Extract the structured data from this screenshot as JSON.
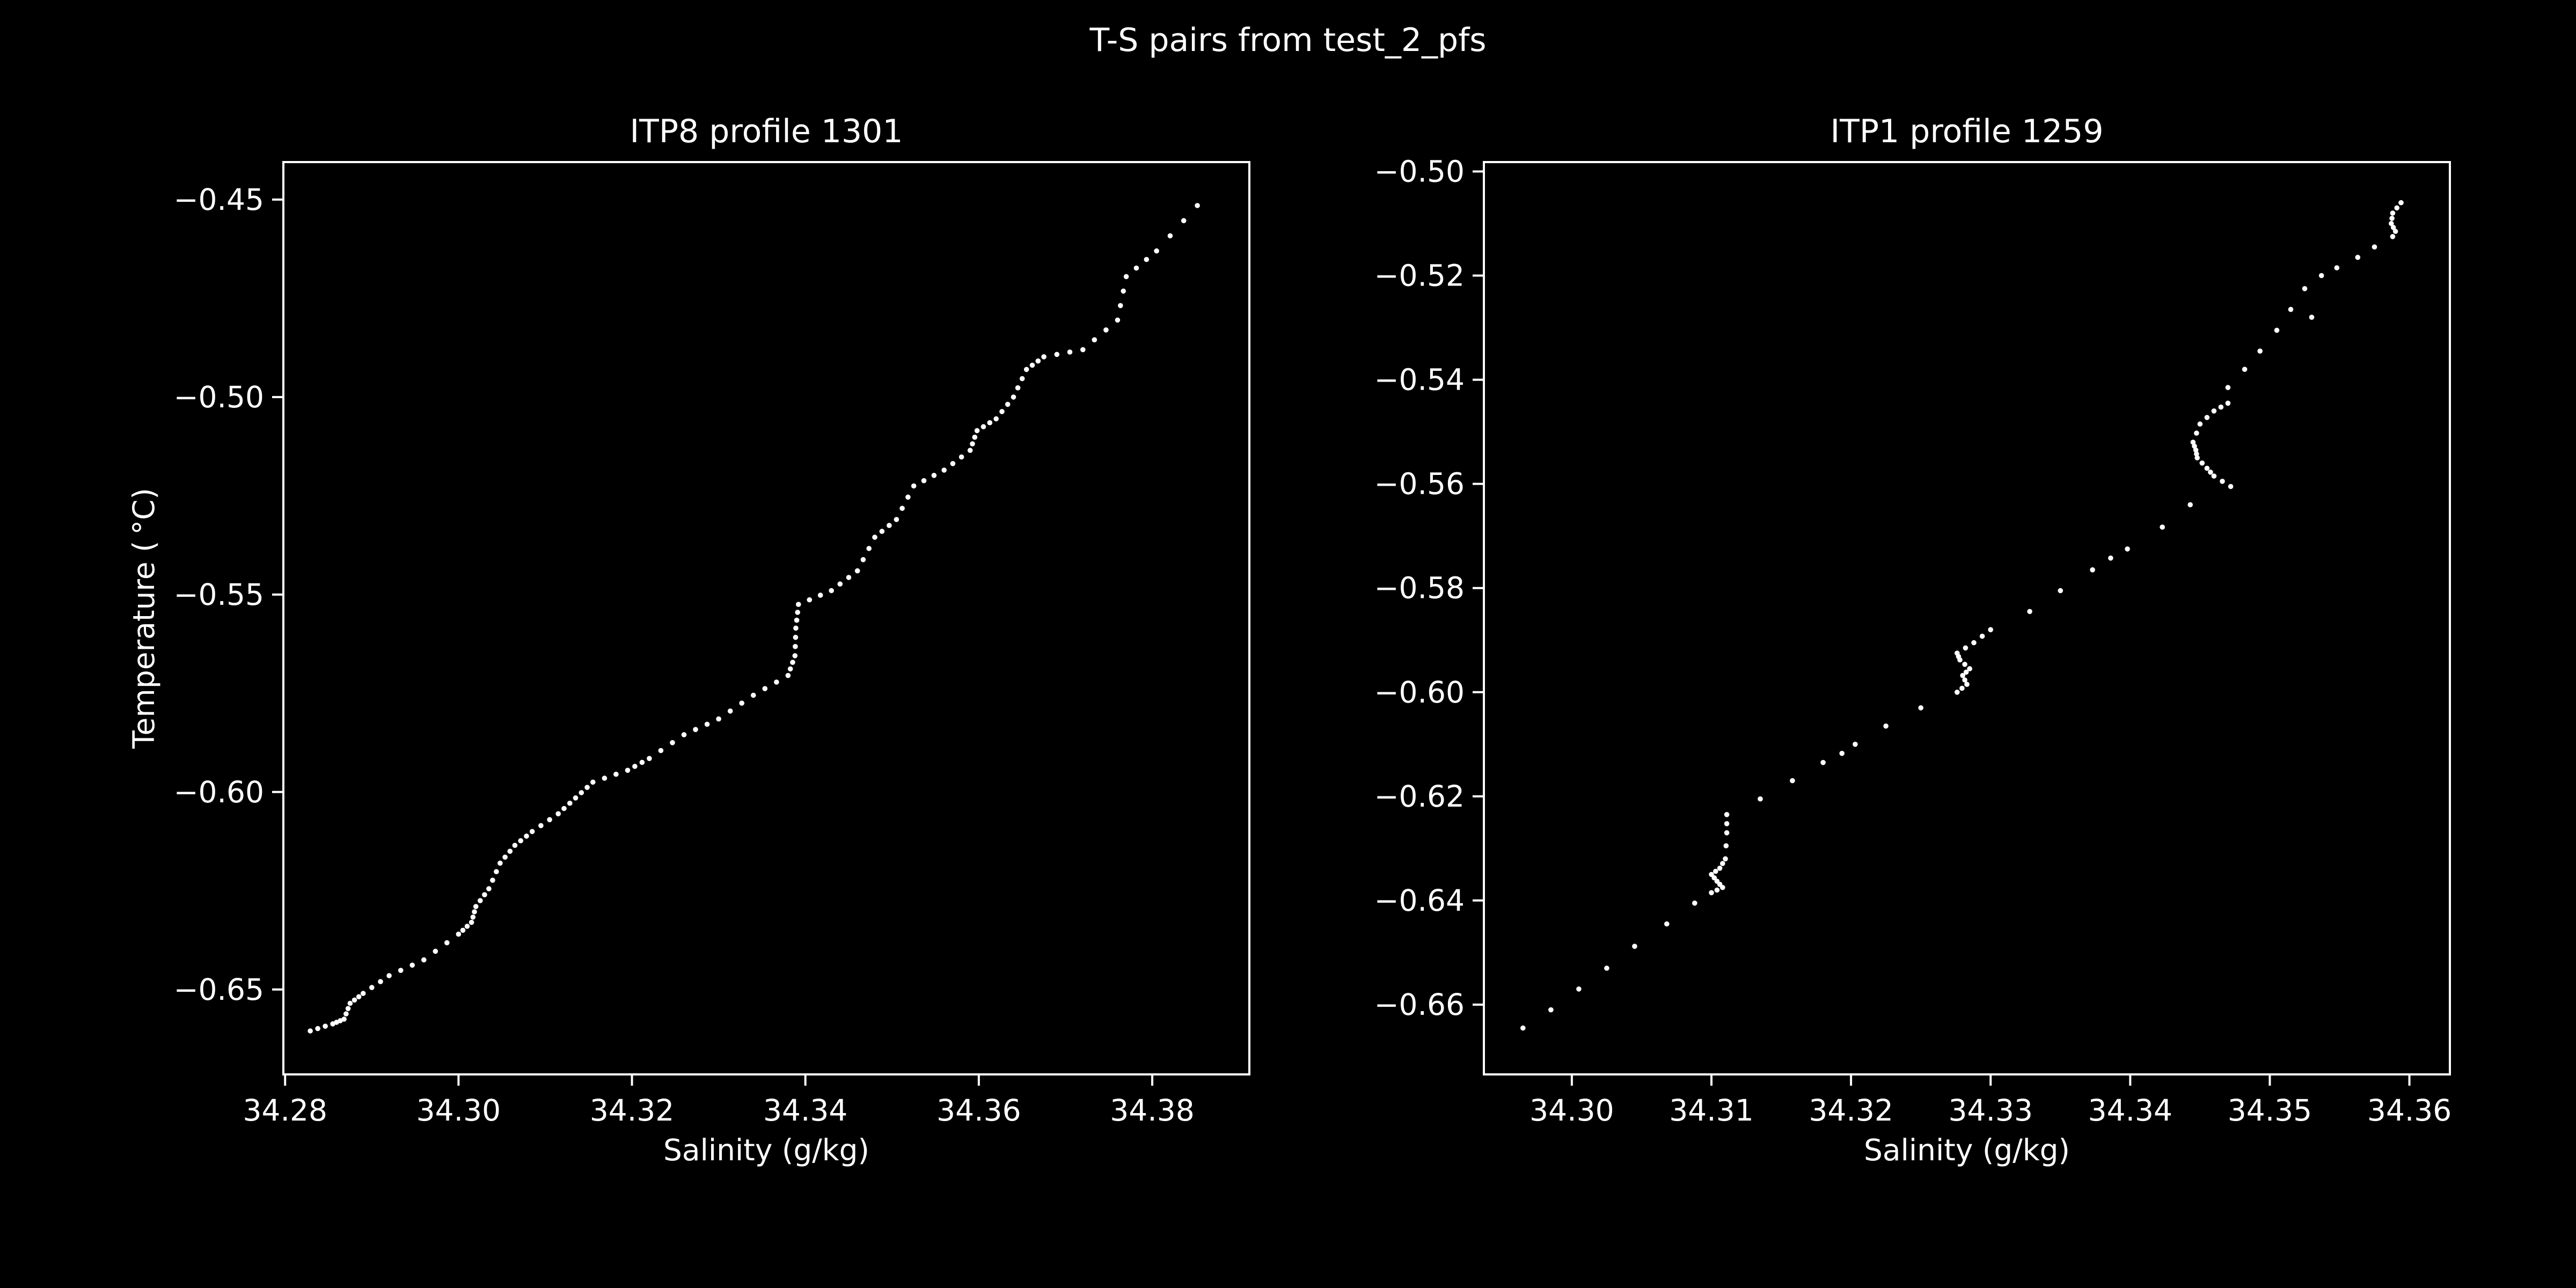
{
  "figure": {
    "suptitle": "T-S pairs from test_2_pfs",
    "background": "#000000",
    "foreground": "#ffffff",
    "marker_color": "#ffffff"
  },
  "chart_data": [
    {
      "type": "scatter",
      "title": "ITP8 profile 1301",
      "xlabel": "Salinity (g/kg)",
      "ylabel": "Temperature ($^\\circ$C)",
      "ylabel_display": "Temperature ( °C)",
      "xlim": [
        34.2798,
        34.3912
      ],
      "ylim": [
        -0.6715,
        -0.4405
      ],
      "xticks": [
        34.28,
        34.3,
        34.32,
        34.34,
        34.36,
        34.38
      ],
      "xtick_labels": [
        "34.28",
        "34.30",
        "34.32",
        "34.34",
        "34.36",
        "34.38"
      ],
      "yticks": [
        -0.65,
        -0.6,
        -0.55,
        -0.5,
        -0.45
      ],
      "ytick_labels": [
        "−0.65",
        "−0.60",
        "−0.55",
        "−0.50",
        "−0.45"
      ],
      "grid": false,
      "series": [
        {
          "marker_size": 1.6,
          "vertices": [
            [
              34.2829,
              -0.6605
            ],
            [
              34.2855,
              -0.6587
            ],
            [
              34.2868,
              -0.6575
            ],
            [
              34.2875,
              -0.6535
            ],
            [
              34.289,
              -0.651
            ],
            [
              34.292,
              -0.6465
            ],
            [
              34.296,
              -0.6425
            ],
            [
              34.3,
              -0.636
            ],
            [
              34.3015,
              -0.633
            ],
            [
              34.302,
              -0.629
            ],
            [
              34.3035,
              -0.6245
            ],
            [
              34.3048,
              -0.618
            ],
            [
              34.3065,
              -0.6135
            ],
            [
              34.3085,
              -0.61
            ],
            [
              34.3115,
              -0.6055
            ],
            [
              34.3135,
              -0.6015
            ],
            [
              34.3155,
              -0.5975
            ],
            [
              34.3195,
              -0.5945
            ],
            [
              34.322,
              -0.5915
            ],
            [
              34.326,
              -0.5855
            ],
            [
              34.33,
              -0.5815
            ],
            [
              34.334,
              -0.5755
            ],
            [
              34.338,
              -0.5705
            ],
            [
              34.3388,
              -0.5655
            ],
            [
              34.3389,
              -0.5585
            ],
            [
              34.3392,
              -0.5525
            ],
            [
              34.343,
              -0.549
            ],
            [
              34.346,
              -0.544
            ],
            [
              34.348,
              -0.5355
            ],
            [
              34.3505,
              -0.531
            ],
            [
              34.3525,
              -0.5225
            ],
            [
              34.356,
              -0.5185
            ],
            [
              34.359,
              -0.5135
            ],
            [
              34.3598,
              -0.5085
            ],
            [
              34.362,
              -0.5055
            ],
            [
              34.364,
              -0.5
            ],
            [
              34.3655,
              -0.493
            ],
            [
              34.3675,
              -0.4898
            ],
            [
              34.372,
              -0.488
            ],
            [
              34.376,
              -0.4805
            ],
            [
              34.377,
              -0.4695
            ],
            [
              34.3805,
              -0.463
            ],
            [
              34.3852,
              -0.4515
            ]
          ],
          "points_per_segment": 3
        }
      ]
    },
    {
      "type": "scatter",
      "title": "ITP1 profile 1259",
      "xlabel": "Salinity (g/kg)",
      "ylabel": "",
      "xlim": [
        34.2937,
        34.3629
      ],
      "ylim": [
        -0.6734,
        -0.4982
      ],
      "xticks": [
        34.3,
        34.31,
        34.32,
        34.33,
        34.34,
        34.35,
        34.36
      ],
      "xtick_labels": [
        "34.30",
        "34.31",
        "34.32",
        "34.33",
        "34.34",
        "34.35",
        "34.36"
      ],
      "yticks": [
        -0.66,
        -0.64,
        -0.62,
        -0.6,
        -0.58,
        -0.56,
        -0.54,
        -0.52,
        -0.5
      ],
      "ytick_labels": [
        "−0.66",
        "−0.64",
        "−0.62",
        "−0.60",
        "−0.58",
        "−0.56",
        "−0.54",
        "−0.52",
        "−0.50"
      ],
      "grid": false,
      "series": [
        {
          "marker_size": 1.6,
          "points": [
            [
              34.2965,
              -0.6645
            ],
            [
              34.2985,
              -0.661
            ],
            [
              34.3005,
              -0.657
            ],
            [
              34.3025,
              -0.653
            ],
            [
              34.3045,
              -0.6488
            ],
            [
              34.3068,
              -0.6445
            ],
            [
              34.3088,
              -0.6405
            ],
            [
              34.3135,
              -0.6205
            ],
            [
              34.3158,
              -0.617
            ],
            [
              34.318,
              -0.6135
            ],
            [
              34.3203,
              -0.61
            ],
            [
              34.3225,
              -0.6065
            ],
            [
              34.325,
              -0.603
            ],
            [
              34.3328,
              -0.5845
            ],
            [
              34.335,
              -0.5805
            ],
            [
              34.3373,
              -0.5765
            ],
            [
              34.3398,
              -0.5725
            ],
            [
              34.3423,
              -0.5683
            ],
            [
              34.3443,
              -0.564
            ],
            [
              34.347,
              -0.5415
            ],
            [
              34.3482,
              -0.538
            ],
            [
              34.3493,
              -0.5345
            ],
            [
              34.3505,
              -0.5305
            ],
            [
              34.3515,
              -0.5265
            ],
            [
              34.3525,
              -0.5225
            ],
            [
              34.3537,
              -0.52
            ],
            [
              34.3548,
              -0.5185
            ],
            [
              34.3563,
              -0.5165
            ],
            [
              34.3575,
              -0.5145
            ],
            [
              34.3588,
              -0.5125
            ]
          ],
          "vertices": [
            [
              34.31,
              -0.6385
            ],
            [
              34.3108,
              -0.6375
            ],
            [
              34.3104,
              -0.6363
            ],
            [
              34.31,
              -0.635
            ],
            [
              34.3106,
              -0.6338
            ],
            [
              34.311,
              -0.632
            ],
            [
              34.3111,
              -0.627
            ],
            [
              34.3111,
              -0.6235
            ],
            [
              34.3276,
              -0.6
            ],
            [
              34.3283,
              -0.5985
            ],
            [
              34.328,
              -0.5968
            ],
            [
              34.3285,
              -0.5955
            ],
            [
              34.3278,
              -0.5938
            ],
            [
              34.3276,
              -0.5925
            ],
            [
              34.3288,
              -0.5905
            ],
            [
              34.33,
              -0.588
            ],
            [
              34.3472,
              -0.5605
            ],
            [
              34.346,
              -0.5585
            ],
            [
              34.3455,
              -0.557
            ],
            [
              34.3448,
              -0.555
            ],
            [
              34.3447,
              -0.5535
            ],
            [
              34.3445,
              -0.552
            ],
            [
              34.345,
              -0.5485
            ],
            [
              34.346,
              -0.546
            ],
            [
              34.347,
              -0.5445
            ],
            [
              34.359,
              -0.5115
            ],
            [
              34.3587,
              -0.51
            ],
            [
              34.3588,
              -0.508
            ],
            [
              34.3594,
              -0.506
            ]
          ],
          "points_per_segment": 2
        }
      ]
    }
  ]
}
